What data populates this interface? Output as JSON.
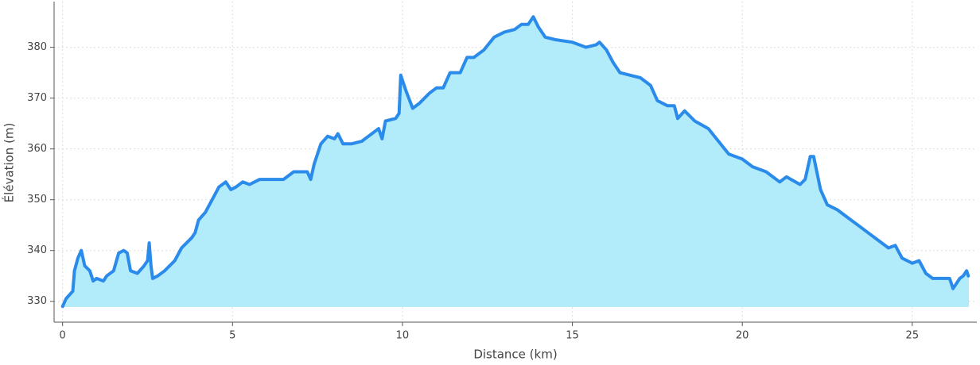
{
  "chart_data": {
    "type": "area",
    "xlabel": "Distance (km)",
    "ylabel": "Élévation (m)",
    "x": [
      0,
      0.1,
      0.3,
      0.35,
      0.45,
      0.55,
      0.65,
      0.8,
      0.9,
      1.0,
      1.2,
      1.3,
      1.5,
      1.65,
      1.8,
      1.9,
      2.0,
      2.2,
      2.4,
      2.5,
      2.55,
      2.6,
      2.65,
      2.8,
      3.0,
      3.3,
      3.5,
      3.8,
      3.9,
      4.0,
      4.2,
      4.4,
      4.6,
      4.8,
      4.95,
      5.1,
      5.3,
      5.5,
      5.8,
      6.2,
      6.5,
      6.8,
      7.2,
      7.3,
      7.4,
      7.6,
      7.8,
      8.0,
      8.1,
      8.25,
      8.5,
      8.8,
      9.0,
      9.3,
      9.4,
      9.5,
      9.8,
      9.9,
      9.95,
      10.1,
      10.3,
      10.5,
      10.8,
      11.0,
      11.2,
      11.4,
      11.7,
      11.9,
      12.1,
      12.4,
      12.7,
      13.0,
      13.3,
      13.5,
      13.7,
      13.85,
      14.0,
      14.2,
      14.5,
      15.0,
      15.4,
      15.7,
      15.8,
      16.0,
      16.2,
      16.4,
      16.7,
      17.0,
      17.3,
      17.5,
      17.8,
      18.0,
      18.1,
      18.3,
      18.6,
      19.0,
      19.3,
      19.6,
      20.0,
      20.3,
      20.7,
      20.9,
      21.1,
      21.3,
      21.7,
      21.85,
      22.0,
      22.1,
      22.3,
      22.5,
      22.8,
      23.1,
      23.4,
      23.7,
      24.0,
      24.3,
      24.5,
      24.7,
      25.0,
      25.2,
      25.4,
      25.6,
      25.9,
      26.1,
      26.2,
      26.4,
      26.5,
      26.6,
      26.65
    ],
    "values": [
      329,
      330.5,
      332,
      336,
      338.5,
      340,
      337,
      336,
      334,
      334.5,
      334,
      335,
      336,
      339.5,
      340,
      339.5,
      336,
      335.5,
      337,
      338,
      341.5,
      337,
      334.5,
      335,
      336,
      338,
      340.5,
      342.5,
      343.5,
      346,
      347.5,
      350,
      352.5,
      353.5,
      352,
      352.5,
      353.5,
      353,
      354,
      354,
      354,
      355.5,
      355.5,
      354,
      357,
      361,
      362.5,
      362,
      363,
      361,
      361,
      361.5,
      362.5,
      364,
      362,
      365.5,
      366,
      367,
      374.5,
      371.5,
      368,
      369,
      371,
      372,
      372,
      375,
      375,
      378,
      378,
      379.5,
      382,
      383,
      383.5,
      384.5,
      384.5,
      386,
      384,
      382,
      381.5,
      381,
      380,
      380.5,
      381,
      379.5,
      377,
      375,
      374.5,
      374,
      372.5,
      369.5,
      368.5,
      368.5,
      366,
      367.5,
      365.5,
      364,
      361.5,
      359,
      358,
      356.5,
      355.5,
      354.5,
      353.5,
      354.5,
      353,
      354,
      358.5,
      358.5,
      352,
      349,
      348,
      346.5,
      345,
      343.5,
      342,
      340.5,
      341,
      338.5,
      337.5,
      338,
      335.5,
      334.5,
      334.5,
      334.5,
      332.5,
      334.5,
      335,
      336,
      335
    ],
    "color": "#2a8bea",
    "fill_color": "#b2ebfa",
    "xlim": [
      -0.25,
      26.9
    ],
    "xticks": [
      0,
      5,
      10,
      15,
      20,
      25
    ],
    "ylim": [
      325.9,
      389
    ],
    "yticks": [
      330,
      340,
      350,
      360,
      370,
      380
    ],
    "grid": true
  }
}
